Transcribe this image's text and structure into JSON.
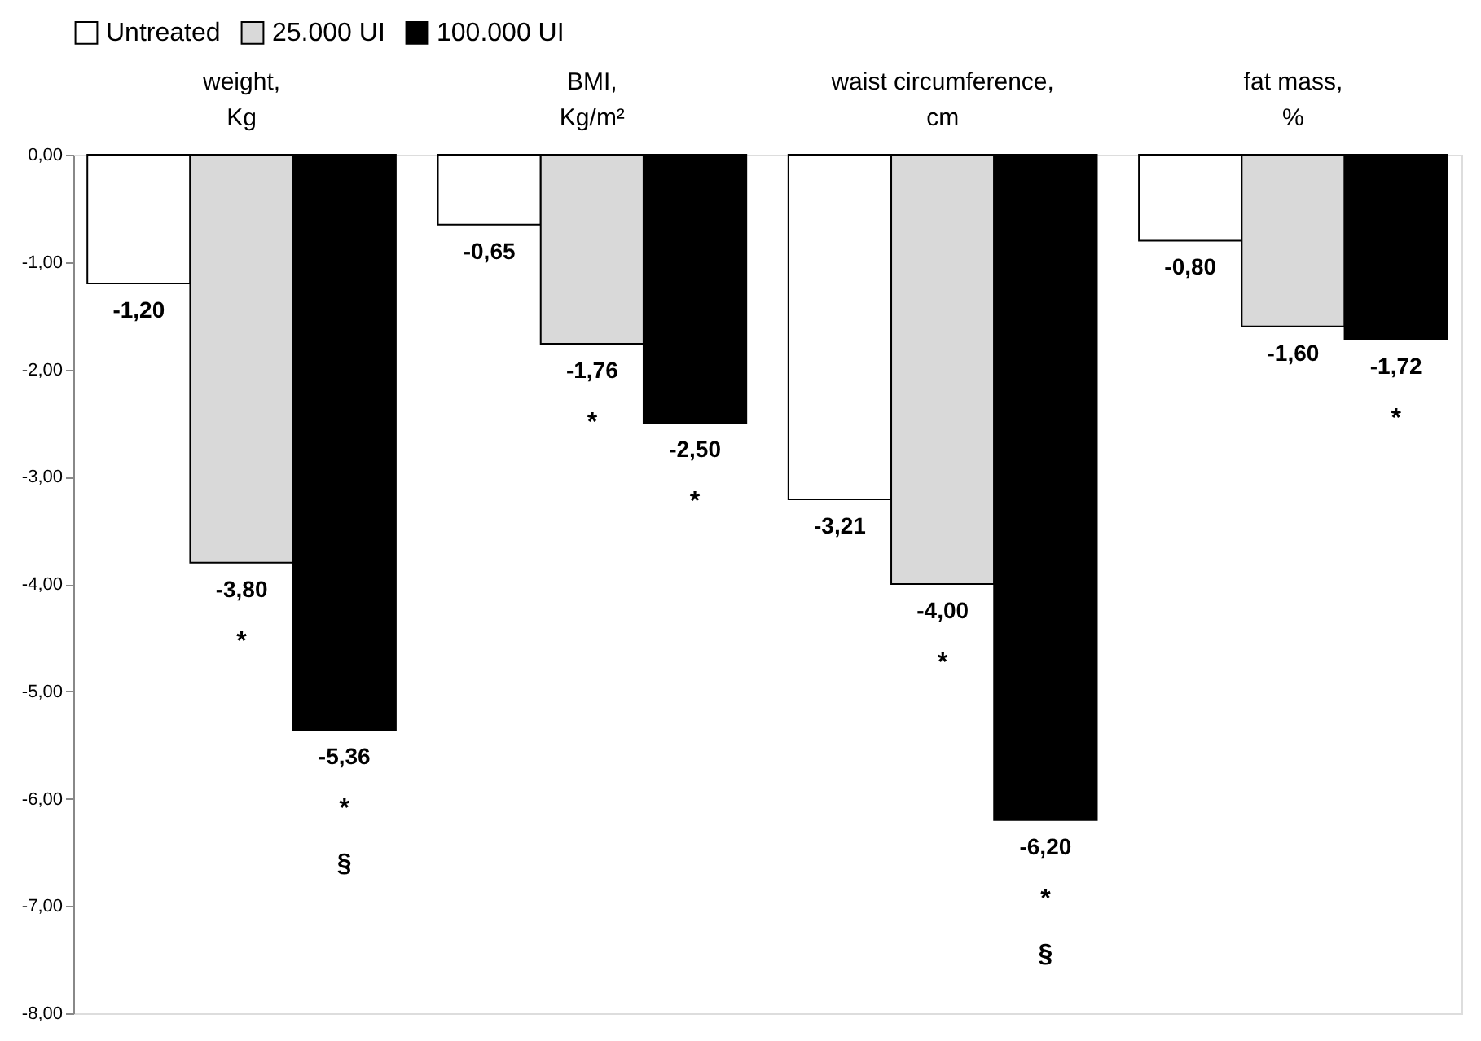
{
  "chart_data": {
    "type": "bar",
    "categories": [
      "weight,\nKg",
      "BMI,\nKg/m²",
      "waist circumference,\ncm",
      "fat mass,\n%"
    ],
    "series": [
      {
        "name": "Untreated",
        "color": "#ffffff",
        "values": [
          -1.2,
          -0.65,
          -3.21,
          -0.8
        ],
        "value_labels": [
          "-1,20",
          "-0,65",
          "-3,21",
          "-0,80"
        ]
      },
      {
        "name": "25.000 UI",
        "color": "#d9d9d9",
        "values": [
          -3.8,
          -1.76,
          -4.0,
          -1.6
        ],
        "value_labels": [
          "-3,80",
          "-1,76",
          "-4,00",
          "-1,60"
        ]
      },
      {
        "name": "100.000 UI",
        "color": "#000000",
        "values": [
          -5.36,
          -2.5,
          -6.2,
          -1.72
        ],
        "value_labels": [
          "-5,36",
          "-2,50",
          "-6,20",
          "-1,72"
        ]
      }
    ],
    "ylim": [
      -8,
      0
    ],
    "yticks": [
      {
        "value": 0,
        "label": "0,00"
      },
      {
        "value": -1,
        "label": "-1,00"
      },
      {
        "value": -2,
        "label": "-2,00"
      },
      {
        "value": -3,
        "label": "-3,00"
      },
      {
        "value": -4,
        "label": "-4,00"
      },
      {
        "value": -5,
        "label": "-5,00"
      },
      {
        "value": -6,
        "label": "-6,00"
      },
      {
        "value": -7,
        "label": "-7,00"
      },
      {
        "value": -8,
        "label": "-8,00"
      }
    ],
    "annotations": [
      "*",
      "*",
      "§",
      "*",
      "*",
      "*",
      "*",
      "§",
      "*"
    ],
    "legend": "top",
    "grid": false
  }
}
